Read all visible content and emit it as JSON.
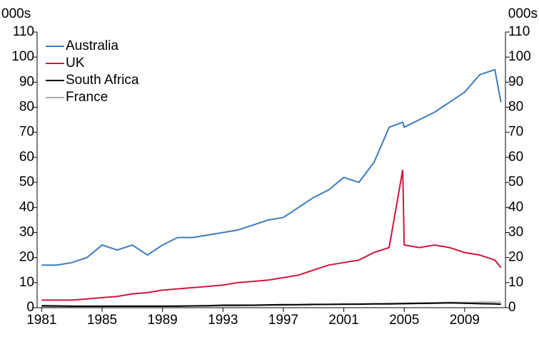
{
  "chart_data": {
    "type": "line",
    "y_label": "000s",
    "y2_label": "000s",
    "x": [
      1981,
      1982,
      1983,
      1984,
      1985,
      1986,
      1987,
      1988,
      1989,
      1990,
      1991,
      1992,
      1993,
      1994,
      1995,
      1996,
      1997,
      1998,
      1999,
      2000,
      2001,
      2002,
      2003,
      2004,
      2004.9,
      2005,
      2006,
      2007,
      2008,
      2009,
      2010,
      2011,
      2011.4
    ],
    "xlim": [
      1980.7,
      2011.7
    ],
    "xticks": [
      1981,
      1985,
      1989,
      1993,
      1997,
      2001,
      2005,
      2009
    ],
    "ylim": [
      0,
      110
    ],
    "yticks": [
      0,
      10,
      20,
      30,
      40,
      50,
      60,
      70,
      80,
      90,
      100,
      110
    ],
    "y2lim": [
      0,
      110
    ],
    "y2ticks": [
      0,
      10,
      20,
      30,
      40,
      50,
      60,
      70,
      80,
      90,
      100,
      110
    ],
    "grid": false,
    "legend": "upper left",
    "series": [
      {
        "name": "Australia",
        "color": "#3c7bbf",
        "values": [
          17,
          17,
          18,
          20,
          25,
          23,
          25,
          21,
          25,
          28,
          28,
          29,
          30,
          31,
          33,
          35,
          36,
          40,
          44,
          47,
          52,
          50,
          58,
          72,
          74,
          72,
          75,
          78,
          82,
          86,
          93,
          95,
          82
        ]
      },
      {
        "name": "UK",
        "color": "#d0153a",
        "values": [
          3,
          3,
          3,
          3.5,
          4,
          4.5,
          5.5,
          6,
          7,
          7.5,
          8,
          8.5,
          9,
          10,
          10.5,
          11,
          12,
          13,
          15,
          17,
          18,
          19,
          22,
          24,
          55,
          25,
          24,
          25,
          24,
          22,
          21,
          19,
          16
        ]
      },
      {
        "name": "South Africa",
        "color": "#000000",
        "values": [
          0.8,
          0.7,
          0.6,
          0.6,
          0.6,
          0.6,
          0.6,
          0.6,
          0.6,
          0.6,
          0.7,
          0.8,
          1,
          1,
          1,
          1.1,
          1.2,
          1.2,
          1.3,
          1.3,
          1.4,
          1.4,
          1.5,
          1.5,
          1.6,
          1.6,
          1.7,
          1.8,
          1.9,
          1.8,
          1.6,
          1.5,
          1.4
        ]
      },
      {
        "name": "France",
        "color": "#aaaaaa",
        "values": [
          0.5,
          0.5,
          0.5,
          0.5,
          0.5,
          0.6,
          0.6,
          0.6,
          0.6,
          0.7,
          0.7,
          0.7,
          0.8,
          0.8,
          0.9,
          1,
          1,
          1.1,
          1.2,
          1.3,
          1.4,
          1.5,
          1.6,
          1.7,
          1.8,
          1.8,
          1.9,
          2,
          2.1,
          2.1,
          2.2,
          2.2,
          2.2
        ]
      }
    ]
  }
}
